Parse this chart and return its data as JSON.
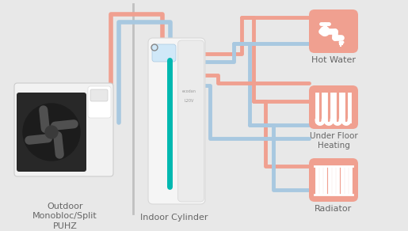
{
  "bg_color": "#e8e8e8",
  "red_color": "#f0a090",
  "blue_color": "#a8c8e0",
  "icon_bg_color": "#f0a090",
  "icon_fg_color": "#ffffff",
  "text_color": "#666666",
  "pipe_lw": 3.5,
  "labels": {
    "outdoor": "Outdoor\nMonobloc/Split\nPUHZ",
    "indoor": "Indoor Cylinder",
    "hot_water": "Hot Water",
    "underfloor": "Under Floor\nHeating",
    "radiator": "Radiator"
  },
  "figsize": [
    5.15,
    2.92
  ],
  "dpi": 100
}
